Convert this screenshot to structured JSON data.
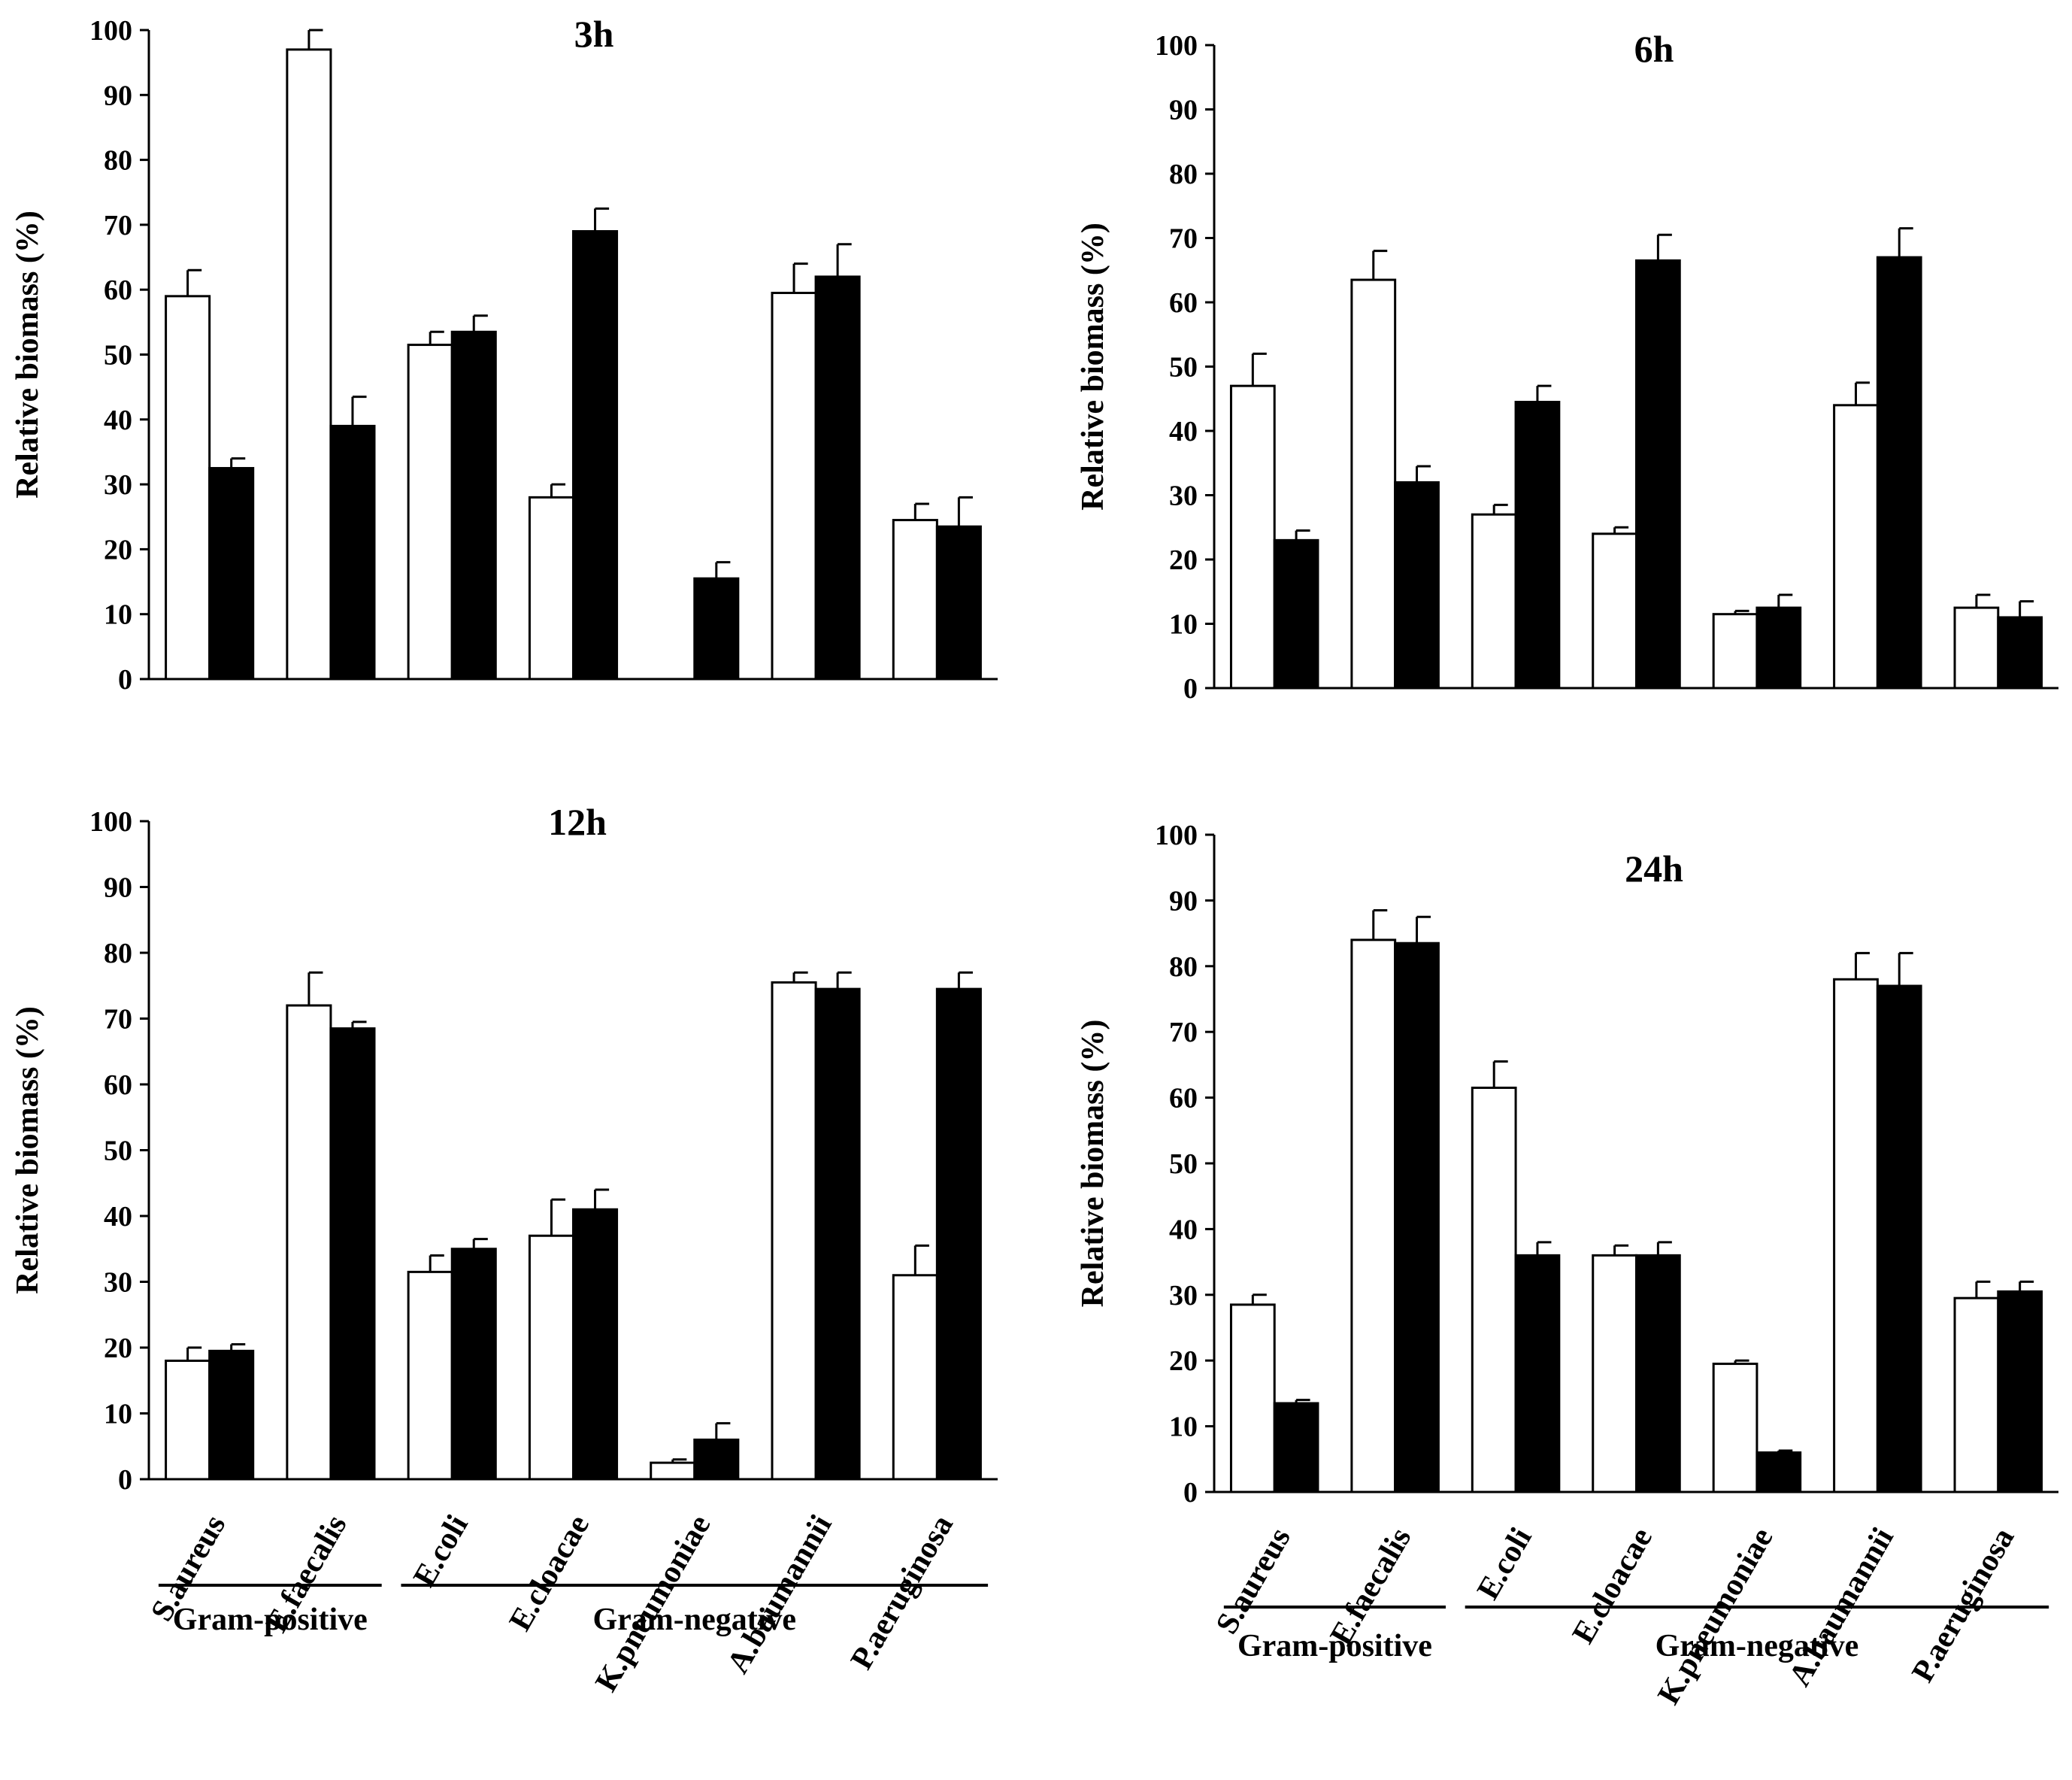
{
  "chart_data": [
    {
      "type": "bar",
      "title": "3h",
      "ylabel": "Relative biomass (%)",
      "ylim": [
        0,
        100
      ],
      "yticks": [
        0,
        10,
        20,
        30,
        40,
        50,
        60,
        70,
        80,
        90,
        100
      ],
      "categories": [
        "S.aureus",
        "E.faecalis",
        "E.coli",
        "E.cloacae",
        "K.pneumoniae",
        "A.baumannii",
        "P.aeruginosa"
      ],
      "series": [
        {
          "name": "open",
          "values": [
            59,
            97,
            51.5,
            28,
            0,
            59.5,
            24.5
          ],
          "errors": [
            4,
            3,
            2,
            2,
            0,
            4.5,
            2.5
          ]
        },
        {
          "name": "filled",
          "values": [
            32.5,
            39,
            53.5,
            69,
            15.5,
            62,
            23.5
          ],
          "errors": [
            1.5,
            4.5,
            2.5,
            3.5,
            2.5,
            5,
            4.5
          ]
        }
      ]
    },
    {
      "type": "bar",
      "title": "6h",
      "ylabel": "Relative biomass (%)",
      "ylim": [
        0,
        100
      ],
      "yticks": [
        0,
        10,
        20,
        30,
        40,
        50,
        60,
        70,
        80,
        90,
        100
      ],
      "categories": [
        "S.aureus",
        "E.faecalis",
        "E.coli",
        "E.cloacae",
        "K.pneumoniae",
        "A.baumannii",
        "P.aeruginosa"
      ],
      "series": [
        {
          "name": "open",
          "values": [
            47,
            63.5,
            27,
            24,
            11.5,
            44,
            12.5
          ],
          "errors": [
            5,
            4.5,
            1.5,
            1,
            0.5,
            3.5,
            2
          ]
        },
        {
          "name": "filled",
          "values": [
            23,
            32,
            44.5,
            66.5,
            12.5,
            67,
            11
          ],
          "errors": [
            1.5,
            2.5,
            2.5,
            4,
            2,
            4.5,
            2.5
          ]
        }
      ]
    },
    {
      "type": "bar",
      "title": "12h",
      "ylabel": "Relative biomass (%)",
      "ylim": [
        0,
        100
      ],
      "yticks": [
        0,
        10,
        20,
        30,
        40,
        50,
        60,
        70,
        80,
        90,
        100
      ],
      "categories": [
        "S.aureus",
        "E.faecalis",
        "E.coli",
        "E.cloacae",
        "K.pneumoniae",
        "A.baumannii",
        "P.aeruginosa"
      ],
      "series": [
        {
          "name": "open",
          "values": [
            18,
            72,
            31.5,
            37,
            2.5,
            75.5,
            31
          ],
          "errors": [
            2,
            5,
            2.5,
            5.5,
            0.5,
            1.5,
            4.5
          ]
        },
        {
          "name": "filled",
          "values": [
            19.5,
            68.5,
            35,
            41,
            6,
            74.5,
            74.5
          ],
          "errors": [
            1,
            1,
            1.5,
            3,
            2.5,
            2.5,
            2.5
          ]
        }
      ]
    },
    {
      "type": "bar",
      "title": "24h",
      "ylabel": "Relative biomass (%)",
      "ylim": [
        0,
        100
      ],
      "yticks": [
        0,
        10,
        20,
        30,
        40,
        50,
        60,
        70,
        80,
        90,
        100
      ],
      "categories": [
        "S.aureus",
        "E.faecalis",
        "E.coli",
        "E.cloacae",
        "K.pneumoniae",
        "A.baumannii",
        "P.aeruginosa"
      ],
      "series": [
        {
          "name": "open",
          "values": [
            28.5,
            84,
            61.5,
            36,
            19.5,
            78,
            29.5
          ],
          "errors": [
            1.5,
            4.5,
            4,
            1.5,
            0.5,
            4,
            2.5
          ]
        },
        {
          "name": "filled",
          "values": [
            13.5,
            83.5,
            36,
            36,
            6,
            77,
            30.5
          ],
          "errors": [
            0.5,
            4,
            2,
            2,
            0.3,
            5,
            1.5
          ]
        }
      ]
    }
  ],
  "groups": [
    {
      "label": "Gram-positive",
      "first": 0,
      "last": 1
    },
    {
      "label": "Gram-negative",
      "first": 2,
      "last": 6
    }
  ]
}
